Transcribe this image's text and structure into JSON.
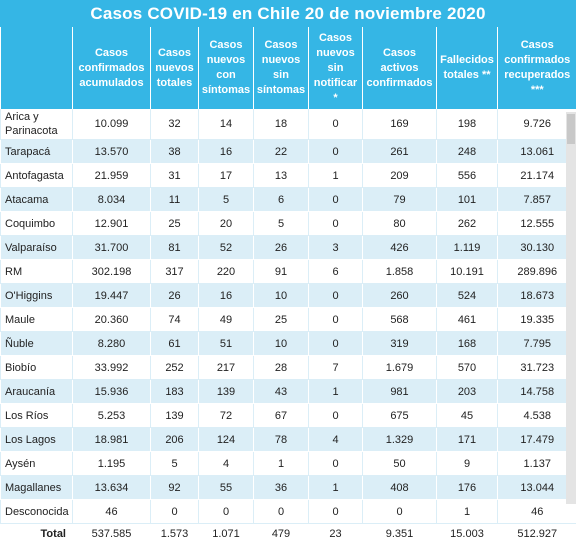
{
  "title": "Casos COVID-19 en Chile 20 de noviembre 2020",
  "headers": [
    "",
    "Casos confirmados acumulados",
    "Casos nuevos totales",
    "Casos nuevos con síntomas",
    "Casos nuevos sin síntomas",
    "Casos nuevos sin notificar *",
    "Casos activos confirmados",
    "Fallecidos totales **",
    "Casos confirmados recuperados ***"
  ],
  "rows": [
    [
      "Arica y Parinacota",
      "10.099",
      "32",
      "14",
      "18",
      "0",
      "169",
      "198",
      "9.726"
    ],
    [
      "Tarapacá",
      "13.570",
      "38",
      "16",
      "22",
      "0",
      "261",
      "248",
      "13.061"
    ],
    [
      "Antofagasta",
      "21.959",
      "31",
      "17",
      "13",
      "1",
      "209",
      "556",
      "21.174"
    ],
    [
      "Atacama",
      "8.034",
      "11",
      "5",
      "6",
      "0",
      "79",
      "101",
      "7.857"
    ],
    [
      "Coquimbo",
      "12.901",
      "25",
      "20",
      "5",
      "0",
      "80",
      "262",
      "12.555"
    ],
    [
      "Valparaíso",
      "31.700",
      "81",
      "52",
      "26",
      "3",
      "426",
      "1.119",
      "30.130"
    ],
    [
      "RM",
      "302.198",
      "317",
      "220",
      "91",
      "6",
      "1.858",
      "10.191",
      "289.896"
    ],
    [
      "O'Higgins",
      "19.447",
      "26",
      "16",
      "10",
      "0",
      "260",
      "524",
      "18.673"
    ],
    [
      "Maule",
      "20.360",
      "74",
      "49",
      "25",
      "0",
      "568",
      "461",
      "19.335"
    ],
    [
      "Ñuble",
      "8.280",
      "61",
      "51",
      "10",
      "0",
      "319",
      "168",
      "7.795"
    ],
    [
      "Biobío",
      "33.992",
      "252",
      "217",
      "28",
      "7",
      "1.679",
      "570",
      "31.723"
    ],
    [
      "Araucanía",
      "15.936",
      "183",
      "139",
      "43",
      "1",
      "981",
      "203",
      "14.758"
    ],
    [
      "Los Ríos",
      "5.253",
      "139",
      "72",
      "67",
      "0",
      "675",
      "45",
      "4.538"
    ],
    [
      "Los Lagos",
      "18.981",
      "206",
      "124",
      "78",
      "4",
      "1.329",
      "171",
      "17.479"
    ],
    [
      "Aysén",
      "1.195",
      "5",
      "4",
      "1",
      "0",
      "50",
      "9",
      "1.137"
    ],
    [
      "Magallanes",
      "13.634",
      "92",
      "55",
      "36",
      "1",
      "408",
      "176",
      "13.044"
    ],
    [
      "Desconocida",
      "46",
      "0",
      "0",
      "0",
      "0",
      "0",
      "1",
      "46"
    ]
  ],
  "total": [
    "Total",
    "537.585",
    "1.573",
    "1.071",
    "479",
    "23",
    "9.351",
    "15.003",
    "512.927"
  ],
  "colors": {
    "header_bg": "#35b6e5",
    "stripe": "#dbeef7"
  }
}
